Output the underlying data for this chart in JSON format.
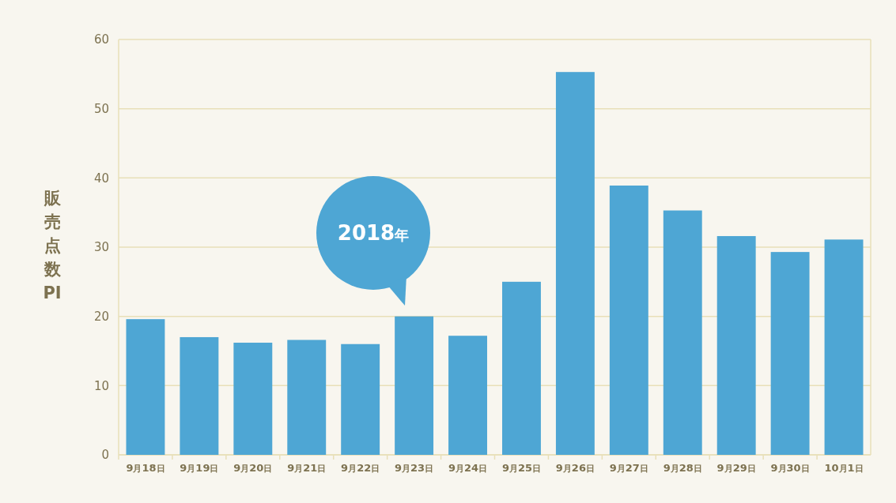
{
  "chart_data": {
    "type": "bar",
    "ylabel": "販売点数PI",
    "categories": [
      "9月18日",
      "9月19日",
      "9月20日",
      "9月21日",
      "9月22日",
      "9月23日",
      "9月24日",
      "9月25日",
      "9月26日",
      "9月27日",
      "9月28日",
      "9月29日",
      "9月30日",
      "10月1日"
    ],
    "values": [
      19.6,
      17.0,
      16.2,
      16.6,
      16.0,
      20.0,
      17.2,
      25.0,
      55.3,
      38.9,
      35.3,
      31.6,
      29.3,
      31.1
    ],
    "color": "#4ea6d4",
    "ylim": [
      0,
      60
    ],
    "yticks": [
      0,
      10,
      20,
      30,
      40,
      50,
      60
    ],
    "grid": "y",
    "annotations": [
      "2018年"
    ]
  }
}
